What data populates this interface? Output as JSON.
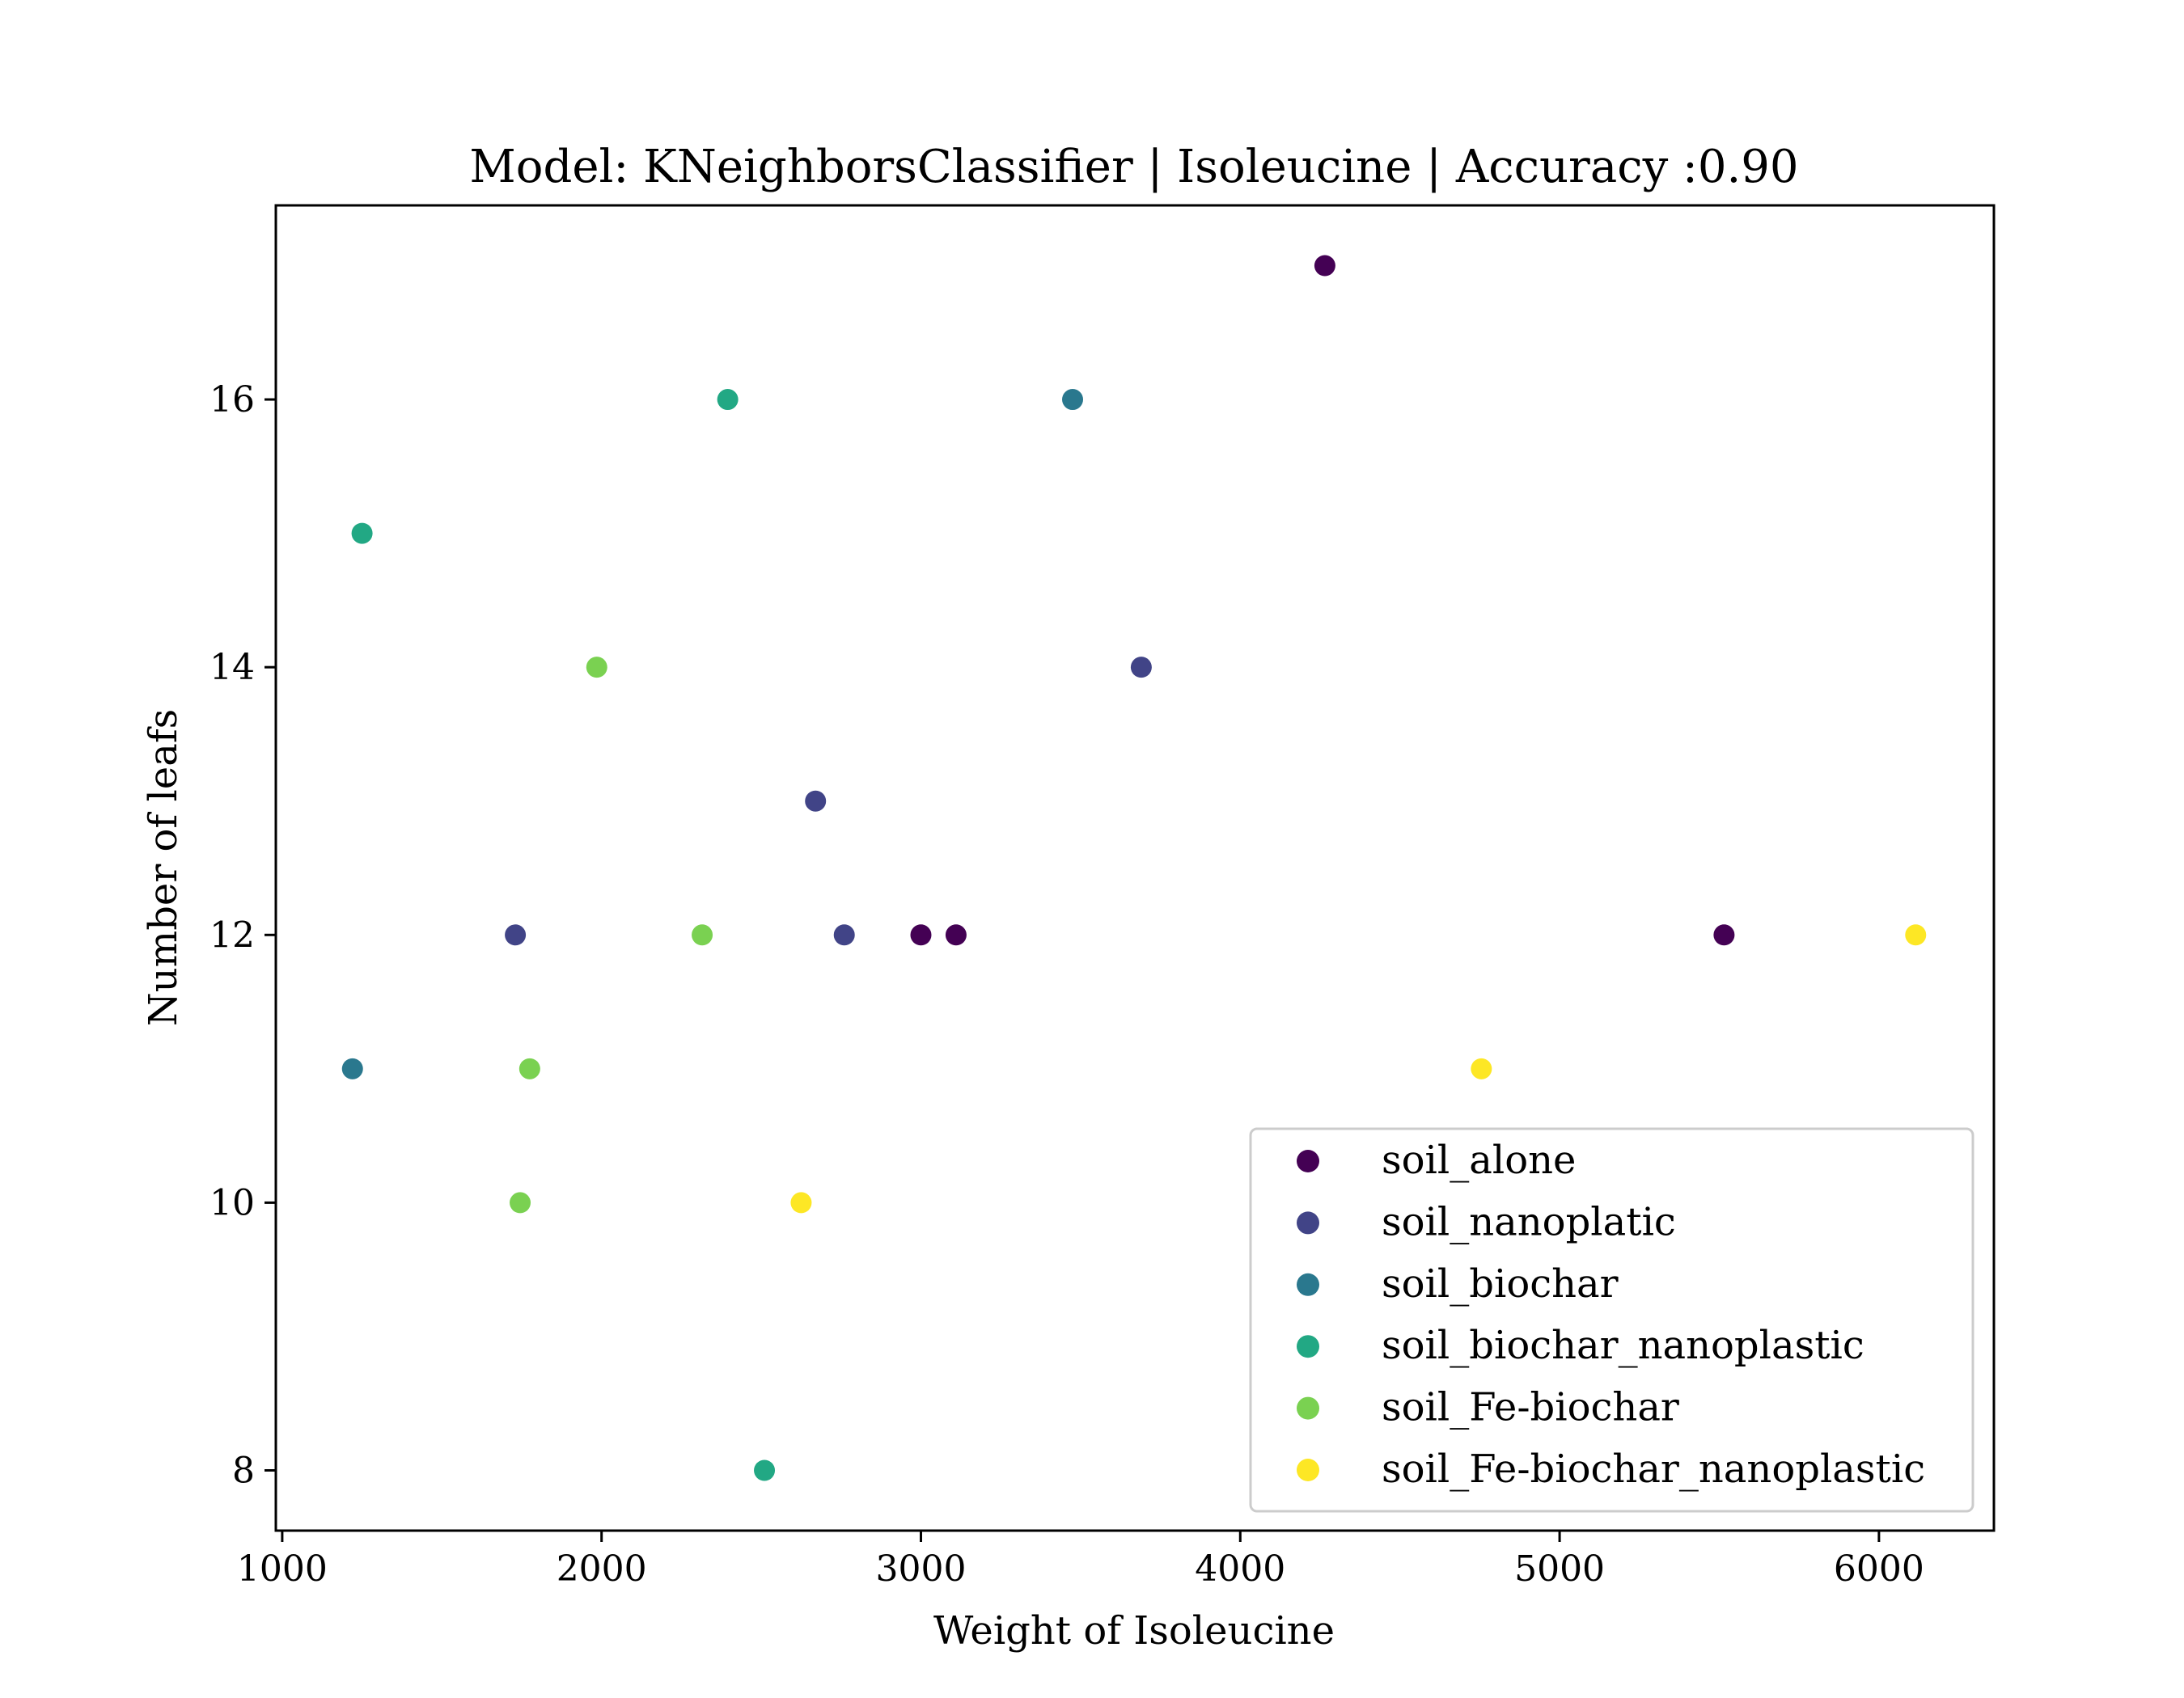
{
  "chart_data": {
    "type": "scatter",
    "title": "Model: KNeighborsClassifier | Isoleucine | Accuracy :0.90",
    "xlabel": "Weight of Isoleucine",
    "ylabel": "Number of leafs",
    "xlim": [
      980,
      6360
    ],
    "ylim": [
      7.55,
      17.45
    ],
    "xticks": [
      1000,
      2000,
      3000,
      4000,
      5000,
      6000
    ],
    "yticks": [
      8,
      10,
      12,
      14,
      16
    ],
    "grid": false,
    "legend_position": "lower right",
    "series": [
      {
        "name": "soil_alone",
        "color": "#440154",
        "points": [
          [
            4265,
            17
          ],
          [
            3000,
            12
          ],
          [
            3110,
            12
          ],
          [
            5515,
            12
          ]
        ]
      },
      {
        "name": "soil_nanoplatic",
        "color": "#414487",
        "points": [
          [
            3690,
            14
          ],
          [
            2670,
            13
          ],
          [
            1730,
            12
          ],
          [
            2760,
            12
          ]
        ]
      },
      {
        "name": "soil_biochar",
        "color": "#2a788e",
        "points": [
          [
            3475,
            16
          ],
          [
            1220,
            11
          ]
        ]
      },
      {
        "name": "soil_biochar_nanoplastic",
        "color": "#22a884",
        "points": [
          [
            2395,
            16
          ],
          [
            1250,
            15
          ],
          [
            2510,
            8
          ]
        ]
      },
      {
        "name": "soil_Fe-biochar",
        "color": "#7ad151",
        "points": [
          [
            1985,
            14
          ],
          [
            2315,
            12
          ],
          [
            1775,
            11
          ],
          [
            1745,
            10
          ]
        ]
      },
      {
        "name": "soil_Fe-biochar_nanoplastic",
        "color": "#fde725",
        "points": [
          [
            6115,
            12
          ],
          [
            4755,
            11
          ],
          [
            2625,
            10
          ]
        ]
      }
    ]
  }
}
